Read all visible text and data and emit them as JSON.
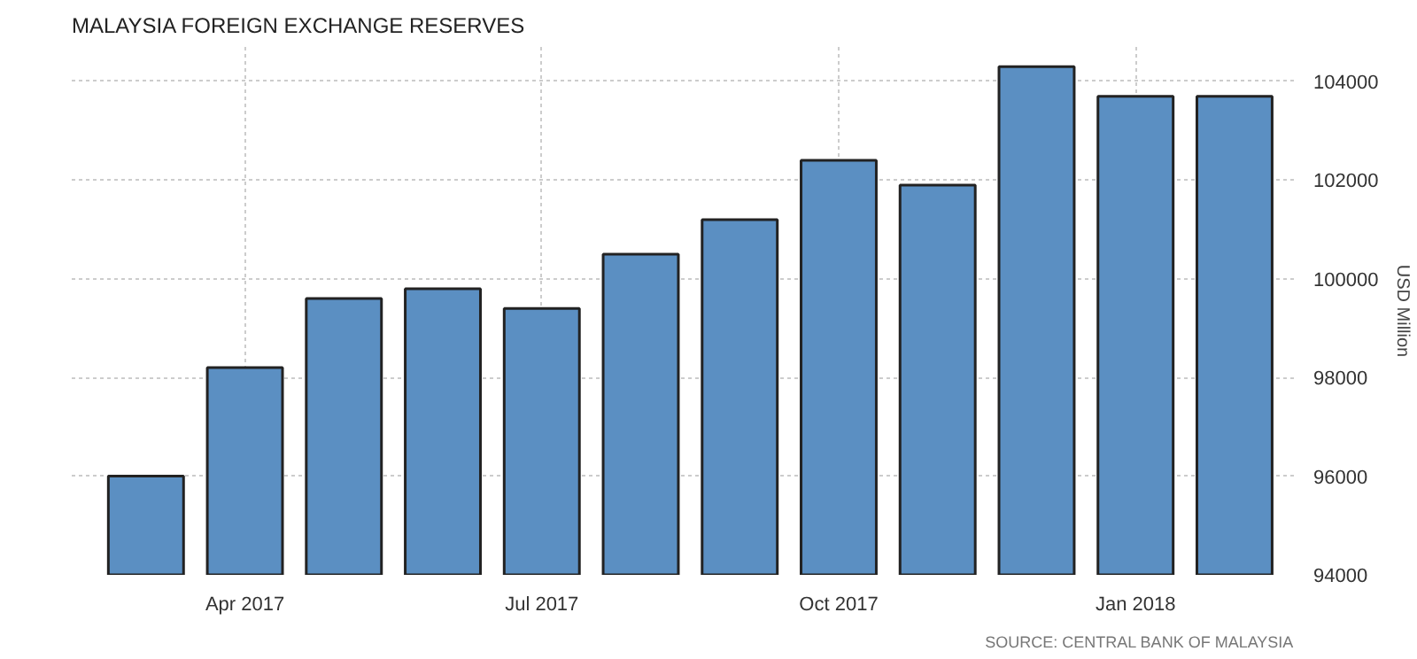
{
  "chart_data": {
    "type": "bar",
    "title": "MALAYSIA FOREIGN EXCHANGE RESERVES",
    "ylabel": "USD Million",
    "categories": [
      null,
      "Apr 2017",
      null,
      null,
      "Jul 2017",
      null,
      null,
      "Oct 2017",
      null,
      null,
      "Jan 2018",
      null
    ],
    "values": [
      96000,
      98200,
      99600,
      99800,
      99400,
      100500,
      101200,
      102400,
      101900,
      104300,
      103700,
      103700
    ],
    "color": "#5b8fc2",
    "ylim": [
      94000,
      104700
    ],
    "yticks": [
      94000,
      96000,
      98000,
      100000,
      102000,
      104000
    ],
    "grid": true,
    "annotations": [
      "SOURCE: CENTRAL BANK OF MALAYSIA"
    ]
  }
}
